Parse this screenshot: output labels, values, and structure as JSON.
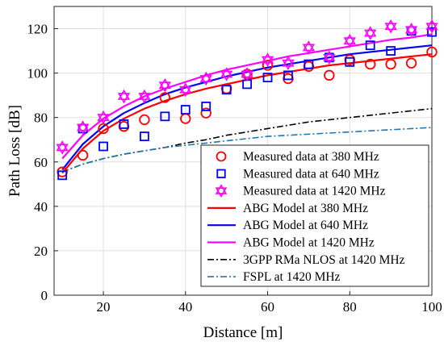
{
  "chart_data": {
    "type": "line",
    "xlabel": "Distance [m]",
    "ylabel": "Path Loss [dB]",
    "xlim": [
      8,
      100
    ],
    "ylim": [
      0,
      130
    ],
    "xticks": [
      20,
      40,
      60,
      80,
      100
    ],
    "yticks": [
      0,
      20,
      40,
      60,
      80,
      100,
      120
    ],
    "grid": true,
    "legend_position": "bottom-right",
    "series": [
      {
        "name": "Measured data at 380 MHz",
        "kind": "marker",
        "marker": "circle",
        "color": "#ff0000",
        "x": [
          10,
          15,
          20,
          25,
          30,
          35,
          40,
          45,
          50,
          55,
          60,
          65,
          70,
          75,
          80,
          85,
          90,
          95,
          100
        ],
        "y": [
          55.5,
          63,
          75,
          76,
          79,
          89,
          79.5,
          82,
          93,
          99.5,
          103.5,
          97.5,
          103,
          99,
          106,
          104,
          104,
          104.5,
          109.5
        ]
      },
      {
        "name": "Measured data at 640 MHz",
        "kind": "marker",
        "marker": "square",
        "color": "#0000ff",
        "x": [
          10,
          15,
          20,
          25,
          30,
          35,
          40,
          45,
          50,
          55,
          60,
          65,
          70,
          75,
          80,
          85,
          90,
          95,
          100
        ],
        "y": [
          54,
          75,
          67,
          77,
          71.5,
          80.5,
          83.5,
          85,
          92.5,
          95,
          98,
          99,
          104,
          107,
          105,
          112.5,
          110,
          119,
          118.5
        ]
      },
      {
        "name": "Measured data at 1420 MHz",
        "kind": "marker",
        "marker": "hexagram",
        "color": "#ff00ff",
        "x": [
          10,
          15,
          20,
          25,
          30,
          35,
          40,
          45,
          50,
          55,
          60,
          65,
          70,
          75,
          80,
          85,
          90,
          95,
          100
        ],
        "y": [
          66.5,
          75.5,
          80,
          89.5,
          89.5,
          94.5,
          92.5,
          97.5,
          99.5,
          99.5,
          106,
          104.5,
          111.5,
          107,
          114.5,
          118,
          121,
          119.5,
          121
        ]
      },
      {
        "name": "ABG Model at 380 MHz",
        "kind": "line",
        "style": "solid",
        "color": "#ff0000",
        "x": [
          10,
          15,
          20,
          25,
          30,
          35,
          40,
          45,
          50,
          55,
          60,
          65,
          70,
          75,
          80,
          85,
          90,
          95,
          100
        ],
        "y": [
          55,
          66,
          74,
          79.5,
          84,
          87.5,
          90.5,
          93,
          95,
          97,
          99,
          100.5,
          102,
          103.5,
          104.5,
          105.5,
          106.5,
          107.5,
          108.5
        ]
      },
      {
        "name": "ABG Model at 640 MHz",
        "kind": "line",
        "style": "solid",
        "color": "#0000ff",
        "x": [
          10,
          15,
          20,
          25,
          30,
          35,
          40,
          45,
          50,
          55,
          60,
          65,
          70,
          75,
          80,
          85,
          90,
          95,
          100
        ],
        "y": [
          56.5,
          68,
          76,
          82,
          86.5,
          90.5,
          93.5,
          96,
          98.5,
          100.5,
          102.5,
          104,
          105.5,
          107,
          108.5,
          109.5,
          110.5,
          111.5,
          112.5
        ]
      },
      {
        "name": "ABG Model at 1420 MHz",
        "kind": "line",
        "style": "solid",
        "color": "#ff00ff",
        "x": [
          10,
          15,
          20,
          25,
          30,
          35,
          40,
          45,
          50,
          55,
          60,
          65,
          70,
          75,
          80,
          85,
          90,
          95,
          100
        ],
        "y": [
          61.5,
          72,
          79.5,
          85,
          89.5,
          93,
          96,
          99,
          101.5,
          103.5,
          105.5,
          107.5,
          109,
          110.5,
          112,
          113.5,
          115,
          116,
          117.5
        ]
      },
      {
        "name": "3GPP RMa NLOS at 1420 MHz",
        "kind": "line",
        "style": "dashdot",
        "color": "#000000",
        "x": [
          10,
          15,
          20,
          25,
          30,
          35,
          40,
          45,
          50,
          55,
          60,
          65,
          70,
          75,
          80,
          85,
          90,
          95,
          100
        ],
        "y": [
          55.5,
          59,
          61.5,
          63.5,
          65,
          66.5,
          68.5,
          70,
          72,
          73.5,
          75,
          76.5,
          78,
          79,
          80,
          81,
          82,
          83,
          84
        ]
      },
      {
        "name": "FSPL at 1420 MHz",
        "kind": "line",
        "style": "dashdot",
        "color": "#1f77b4",
        "x": [
          10,
          15,
          20,
          25,
          30,
          35,
          40,
          45,
          50,
          55,
          60,
          65,
          70,
          75,
          80,
          85,
          90,
          95,
          100
        ],
        "y": [
          55.5,
          59,
          61.5,
          63.5,
          65,
          66.5,
          67.5,
          68.5,
          69.5,
          70.5,
          71.5,
          72,
          72.5,
          73,
          73.5,
          74,
          74.5,
          75,
          75.5
        ]
      }
    ]
  }
}
